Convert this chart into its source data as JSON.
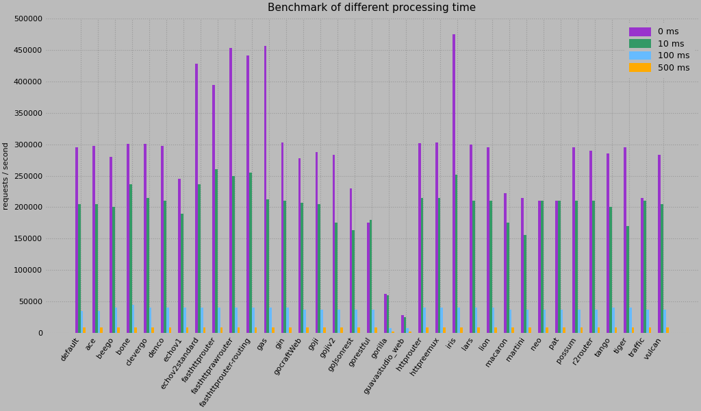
{
  "title": "Benchmark of different processing time",
  "ylabel": "requests / second",
  "categories": [
    "default",
    "ace",
    "beego",
    "bone",
    "clevergo",
    "denco",
    "echov1",
    "echov2standard",
    "fasthttprouter",
    "fasthttprawrouter",
    "fasthttprouter-routing",
    "gas",
    "gin",
    "gocraftWeb",
    "goji",
    "gojiv2",
    "goJsonrest",
    "gorestful",
    "gorilla",
    "guavastudio_web",
    "httprouter",
    "httpreemux",
    "iris",
    "lars",
    "lion",
    "macaron",
    "martini",
    "neo",
    "pat",
    "possum",
    "r2router",
    "tango",
    "tiger",
    "traffic",
    "vulcan"
  ],
  "series": {
    "0 ms": [
      295000,
      297000,
      280000,
      301000,
      301000,
      298000,
      245000,
      428000,
      395000,
      453000,
      441000,
      457000,
      303000,
      278000,
      288000,
      283000,
      230000,
      175000,
      62000,
      28000,
      302000,
      303000,
      475000,
      300000,
      295000,
      222000,
      215000,
      210000,
      210000,
      295000,
      290000,
      286000,
      295000,
      215000,
      283000
    ],
    "10 ms": [
      205000,
      205000,
      200000,
      237000,
      215000,
      210000,
      190000,
      237000,
      260000,
      250000,
      255000,
      213000,
      210000,
      207000,
      205000,
      175000,
      163000,
      180000,
      60000,
      25000,
      215000,
      215000,
      252000,
      210000,
      210000,
      175000,
      156000,
      210000,
      210000,
      210000,
      210000,
      200000,
      170000,
      210000,
      205000
    ],
    "100 ms": [
      35000,
      35000,
      40000,
      45000,
      40000,
      40000,
      40000,
      40000,
      40000,
      40000,
      40000,
      40000,
      40000,
      37000,
      37000,
      37000,
      37000,
      37000,
      7000,
      7000,
      40000,
      40000,
      40000,
      40000,
      40000,
      37000,
      37000,
      37000,
      37000,
      37000,
      37000,
      40000,
      40000,
      37000,
      37000
    ],
    "500 ms": [
      9000,
      9000,
      9000,
      9000,
      9000,
      9000,
      9000,
      9000,
      9000,
      9000,
      9000,
      9000,
      9000,
      9000,
      9000,
      9000,
      9000,
      9000,
      2000,
      2000,
      9000,
      9000,
      9000,
      9000,
      9000,
      9000,
      9000,
      9000,
      9000,
      9000,
      9000,
      9000,
      9000,
      9000,
      9000
    ]
  },
  "colors": {
    "0 ms": "#9933cc",
    "10 ms": "#339966",
    "100 ms": "#66bbff",
    "500 ms": "#ffaa00"
  },
  "ylim": [
    0,
    500000
  ],
  "yticks": [
    0,
    50000,
    100000,
    150000,
    200000,
    250000,
    300000,
    350000,
    400000,
    450000,
    500000
  ],
  "background_color": "#bbbbbb",
  "bar_width": 0.15,
  "title_fontsize": 11,
  "label_fontsize": 8,
  "tick_fontsize": 8
}
